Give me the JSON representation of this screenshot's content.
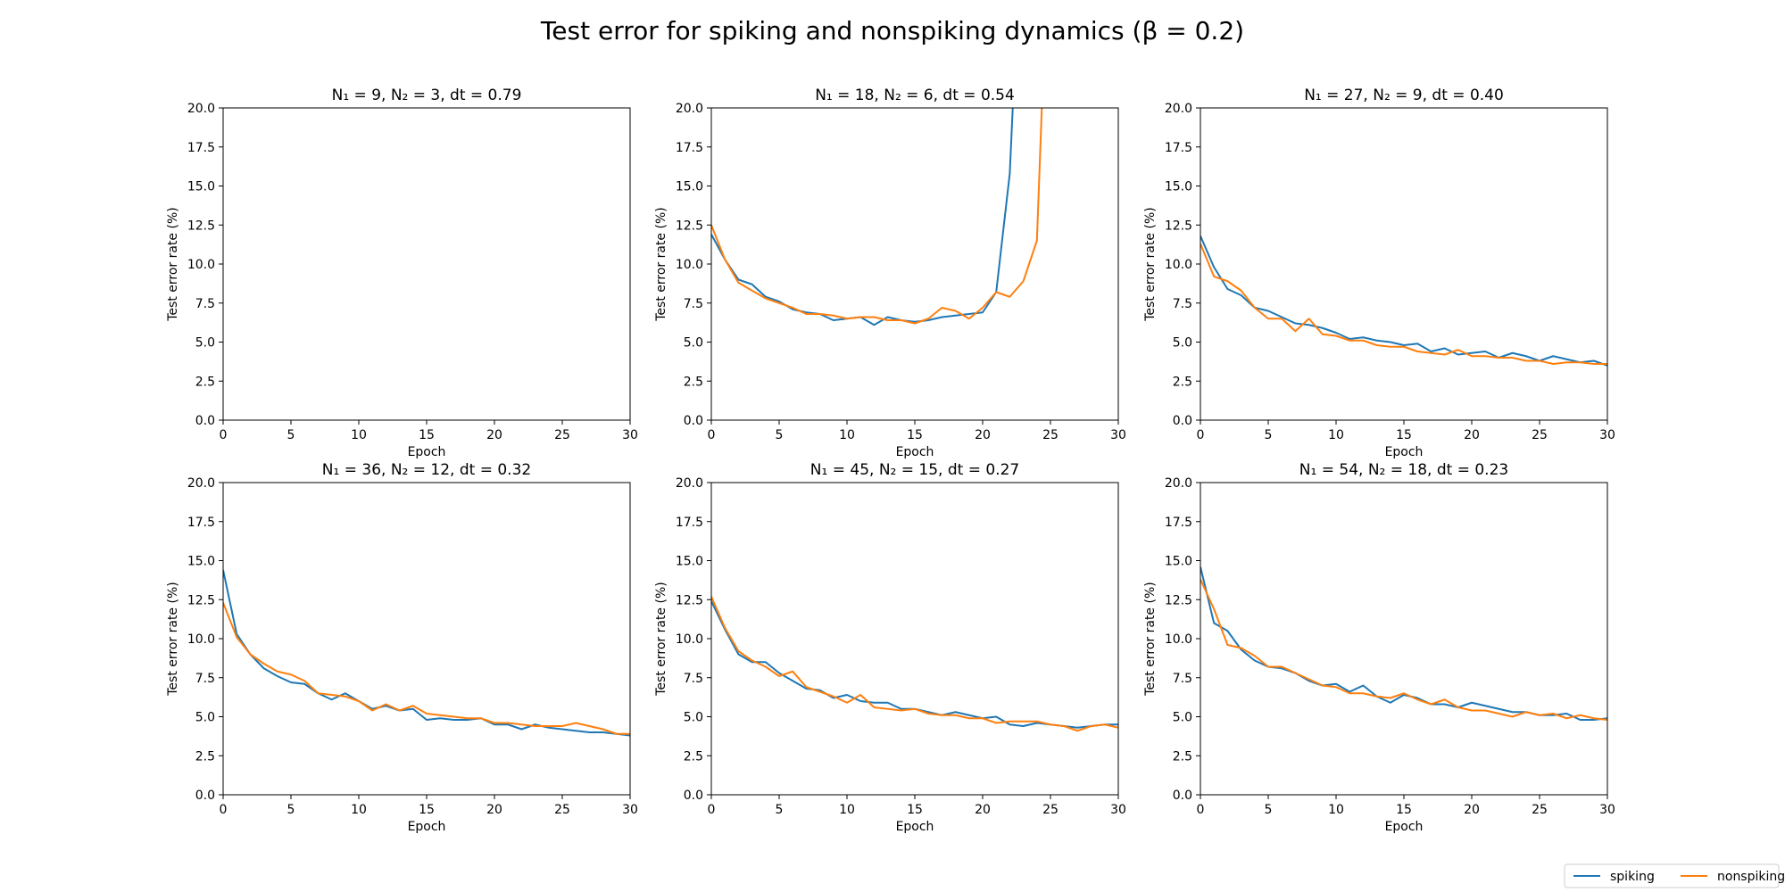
{
  "suptitle": "Test error for spiking and nonspiking dynamics (β = 0.2)",
  "legend": {
    "placement": "bottom-right",
    "entries": [
      {
        "label": "spiking",
        "color": "#1f77b4"
      },
      {
        "label": "nonspiking",
        "color": "#ff7f0e"
      }
    ]
  },
  "chart_data": [
    {
      "type": "line",
      "title": "N₁ = 9, N₂ = 3, dt = 0.79",
      "xlabel": "Epoch",
      "ylabel": "Test error rate (%)",
      "xlim": [
        0,
        30
      ],
      "ylim": [
        0,
        20
      ],
      "xticks": [
        "0",
        "5",
        "10",
        "15",
        "20",
        "25",
        "30"
      ],
      "yticks": [
        "0.0",
        "2.5",
        "5.0",
        "7.5",
        "10.0",
        "12.5",
        "15.0",
        "17.5",
        "20.0"
      ],
      "series": [
        {
          "name": "spiking",
          "color": "#1f77b4",
          "x": [],
          "y": []
        },
        {
          "name": "nonspiking",
          "color": "#ff7f0e",
          "x": [],
          "y": []
        }
      ]
    },
    {
      "type": "line",
      "title": "N₁ = 18, N₂ = 6, dt = 0.54",
      "xlabel": "Epoch",
      "ylabel": "Test error rate (%)",
      "xlim": [
        0,
        30
      ],
      "ylim": [
        0,
        20
      ],
      "xticks": [
        "0",
        "5",
        "10",
        "15",
        "20",
        "25",
        "30"
      ],
      "yticks": [
        "0.0",
        "2.5",
        "5.0",
        "7.5",
        "10.0",
        "12.5",
        "15.0",
        "17.5",
        "20.0"
      ],
      "series": [
        {
          "name": "spiking",
          "color": "#1f77b4",
          "x": [
            0,
            1,
            2,
            3,
            4,
            5,
            6,
            7,
            8,
            9,
            10,
            11,
            12,
            13,
            14,
            15,
            16,
            17,
            18,
            19,
            20,
            21,
            22,
            23
          ],
          "y": [
            11.9,
            10.3,
            9.0,
            8.7,
            7.9,
            7.6,
            7.1,
            6.9,
            6.8,
            6.4,
            6.5,
            6.6,
            6.1,
            6.6,
            6.4,
            6.3,
            6.4,
            6.6,
            6.7,
            6.8,
            6.9,
            8.2,
            15.8,
            35
          ]
        },
        {
          "name": "nonspiking",
          "color": "#ff7f0e",
          "x": [
            0,
            1,
            2,
            3,
            4,
            5,
            6,
            7,
            8,
            9,
            10,
            11,
            12,
            13,
            14,
            15,
            16,
            17,
            18,
            19,
            20,
            21,
            22,
            23,
            24,
            25
          ],
          "y": [
            12.5,
            10.3,
            8.8,
            8.3,
            7.8,
            7.5,
            7.2,
            6.8,
            6.8,
            6.7,
            6.5,
            6.6,
            6.6,
            6.4,
            6.4,
            6.2,
            6.5,
            7.2,
            7.0,
            6.5,
            7.2,
            8.2,
            7.9,
            8.9,
            11.5,
            35
          ]
        }
      ]
    },
    {
      "type": "line",
      "title": "N₁ = 27, N₂ = 9, dt = 0.40",
      "xlabel": "Epoch",
      "ylabel": "Test error rate (%)",
      "xlim": [
        0,
        30
      ],
      "ylim": [
        0,
        20
      ],
      "xticks": [
        "0",
        "5",
        "10",
        "15",
        "20",
        "25",
        "30"
      ],
      "yticks": [
        "0.0",
        "2.5",
        "5.0",
        "7.5",
        "10.0",
        "12.5",
        "15.0",
        "17.5",
        "20.0"
      ],
      "series": [
        {
          "name": "spiking",
          "color": "#1f77b4",
          "x": [
            0,
            1,
            2,
            3,
            4,
            5,
            6,
            7,
            8,
            9,
            10,
            11,
            12,
            13,
            14,
            15,
            16,
            17,
            18,
            19,
            20,
            21,
            22,
            23,
            24,
            25,
            26,
            27,
            28,
            29,
            30
          ],
          "y": [
            11.8,
            9.8,
            8.4,
            8.0,
            7.2,
            7.0,
            6.6,
            6.2,
            6.1,
            5.9,
            5.6,
            5.2,
            5.3,
            5.1,
            5.0,
            4.8,
            4.9,
            4.4,
            4.6,
            4.2,
            4.3,
            4.4,
            4.0,
            4.3,
            4.1,
            3.8,
            4.1,
            3.9,
            3.7,
            3.8,
            3.5
          ]
        },
        {
          "name": "nonspiking",
          "color": "#ff7f0e",
          "x": [
            0,
            1,
            2,
            3,
            4,
            5,
            6,
            7,
            8,
            9,
            10,
            11,
            12,
            13,
            14,
            15,
            16,
            17,
            18,
            19,
            20,
            21,
            22,
            23,
            24,
            25,
            26,
            27,
            28,
            29,
            30
          ],
          "y": [
            11.3,
            9.2,
            8.9,
            8.3,
            7.2,
            6.5,
            6.5,
            5.7,
            6.5,
            5.5,
            5.4,
            5.1,
            5.1,
            4.8,
            4.7,
            4.7,
            4.4,
            4.3,
            4.2,
            4.5,
            4.1,
            4.1,
            4.0,
            4.0,
            3.8,
            3.8,
            3.6,
            3.7,
            3.7,
            3.6,
            3.6
          ]
        }
      ]
    },
    {
      "type": "line",
      "title": "N₁ = 36, N₂ = 12, dt = 0.32",
      "xlabel": "Epoch",
      "ylabel": "Test error rate (%)",
      "xlim": [
        0,
        30
      ],
      "ylim": [
        0,
        20
      ],
      "xticks": [
        "0",
        "5",
        "10",
        "15",
        "20",
        "25",
        "30"
      ],
      "yticks": [
        "0.0",
        "2.5",
        "5.0",
        "7.5",
        "10.0",
        "12.5",
        "15.0",
        "17.5",
        "20.0"
      ],
      "series": [
        {
          "name": "spiking",
          "color": "#1f77b4",
          "x": [
            0,
            1,
            2,
            3,
            4,
            5,
            6,
            7,
            8,
            9,
            10,
            11,
            12,
            13,
            14,
            15,
            16,
            17,
            18,
            19,
            20,
            21,
            22,
            23,
            24,
            25,
            26,
            27,
            28,
            29,
            30
          ],
          "y": [
            14.4,
            10.3,
            9.0,
            8.1,
            7.6,
            7.2,
            7.1,
            6.5,
            6.1,
            6.5,
            6.0,
            5.5,
            5.7,
            5.4,
            5.5,
            4.8,
            4.9,
            4.8,
            4.8,
            4.9,
            4.5,
            4.5,
            4.2,
            4.5,
            4.3,
            4.2,
            4.1,
            4.0,
            4.0,
            3.9,
            3.8
          ]
        },
        {
          "name": "nonspiking",
          "color": "#ff7f0e",
          "x": [
            0,
            1,
            2,
            3,
            4,
            5,
            6,
            7,
            8,
            9,
            10,
            11,
            12,
            13,
            14,
            15,
            16,
            17,
            18,
            19,
            20,
            21,
            22,
            23,
            24,
            25,
            26,
            27,
            28,
            29,
            30
          ],
          "y": [
            12.3,
            10.1,
            9.0,
            8.4,
            7.9,
            7.7,
            7.3,
            6.5,
            6.4,
            6.3,
            6.0,
            5.4,
            5.8,
            5.4,
            5.7,
            5.2,
            5.1,
            5.0,
            4.9,
            4.9,
            4.6,
            4.6,
            4.5,
            4.4,
            4.4,
            4.4,
            4.6,
            4.4,
            4.2,
            3.9,
            3.9
          ]
        }
      ]
    },
    {
      "type": "line",
      "title": "N₁ = 45, N₂ = 15, dt = 0.27",
      "xlabel": "Epoch",
      "ylabel": "Test error rate (%)",
      "xlim": [
        0,
        30
      ],
      "ylim": [
        0,
        20
      ],
      "xticks": [
        "0",
        "5",
        "10",
        "15",
        "20",
        "25",
        "30"
      ],
      "yticks": [
        "0.0",
        "2.5",
        "5.0",
        "7.5",
        "10.0",
        "12.5",
        "15.0",
        "17.5",
        "20.0"
      ],
      "series": [
        {
          "name": "spiking",
          "color": "#1f77b4",
          "x": [
            0,
            1,
            2,
            3,
            4,
            5,
            6,
            7,
            8,
            9,
            10,
            11,
            12,
            13,
            14,
            15,
            16,
            17,
            18,
            19,
            20,
            21,
            22,
            23,
            24,
            25,
            26,
            27,
            28,
            29,
            30
          ],
          "y": [
            12.4,
            10.6,
            9.0,
            8.5,
            8.5,
            7.8,
            7.3,
            6.8,
            6.7,
            6.2,
            6.4,
            6.0,
            5.9,
            5.9,
            5.5,
            5.5,
            5.3,
            5.1,
            5.3,
            5.1,
            4.9,
            5.0,
            4.5,
            4.4,
            4.6,
            4.5,
            4.4,
            4.3,
            4.4,
            4.5,
            4.5
          ]
        },
        {
          "name": "nonspiking",
          "color": "#ff7f0e",
          "x": [
            0,
            1,
            2,
            3,
            4,
            5,
            6,
            7,
            8,
            9,
            10,
            11,
            12,
            13,
            14,
            15,
            16,
            17,
            18,
            19,
            20,
            21,
            22,
            23,
            24,
            25,
            26,
            27,
            28,
            29,
            30
          ],
          "y": [
            12.7,
            10.7,
            9.2,
            8.6,
            8.2,
            7.6,
            7.9,
            6.9,
            6.6,
            6.3,
            5.9,
            6.4,
            5.6,
            5.5,
            5.4,
            5.5,
            5.2,
            5.1,
            5.1,
            4.9,
            4.9,
            4.6,
            4.7,
            4.7,
            4.7,
            4.5,
            4.4,
            4.1,
            4.4,
            4.5,
            4.3
          ]
        }
      ]
    },
    {
      "type": "line",
      "title": "N₁ = 54, N₂ = 18, dt = 0.23",
      "xlabel": "Epoch",
      "ylabel": "Test error rate (%)",
      "xlim": [
        0,
        30
      ],
      "ylim": [
        0,
        20
      ],
      "xticks": [
        "0",
        "5",
        "10",
        "15",
        "20",
        "25",
        "30"
      ],
      "yticks": [
        "0.0",
        "2.5",
        "5.0",
        "7.5",
        "10.0",
        "12.5",
        "15.0",
        "17.5",
        "20.0"
      ],
      "series": [
        {
          "name": "spiking",
          "color": "#1f77b4",
          "x": [
            0,
            1,
            2,
            3,
            4,
            5,
            6,
            7,
            8,
            9,
            10,
            11,
            12,
            13,
            14,
            15,
            16,
            17,
            18,
            19,
            20,
            21,
            22,
            23,
            24,
            25,
            26,
            27,
            28,
            29,
            30
          ],
          "y": [
            14.6,
            11.0,
            10.5,
            9.3,
            8.6,
            8.2,
            8.1,
            7.8,
            7.3,
            7.0,
            7.1,
            6.6,
            7.0,
            6.3,
            5.9,
            6.4,
            6.2,
            5.8,
            5.8,
            5.6,
            5.9,
            5.7,
            5.5,
            5.3,
            5.3,
            5.1,
            5.1,
            5.2,
            4.8,
            4.8,
            4.9
          ]
        },
        {
          "name": "nonspiking",
          "color": "#ff7f0e",
          "x": [
            0,
            1,
            2,
            3,
            4,
            5,
            6,
            7,
            8,
            9,
            10,
            11,
            12,
            13,
            14,
            15,
            16,
            17,
            18,
            19,
            20,
            21,
            22,
            23,
            24,
            25,
            26,
            27,
            28,
            29,
            30
          ],
          "y": [
            13.8,
            11.9,
            9.6,
            9.4,
            8.9,
            8.2,
            8.2,
            7.8,
            7.4,
            7.0,
            6.9,
            6.5,
            6.5,
            6.3,
            6.2,
            6.5,
            6.1,
            5.8,
            6.1,
            5.6,
            5.4,
            5.4,
            5.2,
            5.0,
            5.3,
            5.1,
            5.2,
            4.9,
            5.1,
            4.9,
            4.8
          ]
        }
      ]
    }
  ]
}
